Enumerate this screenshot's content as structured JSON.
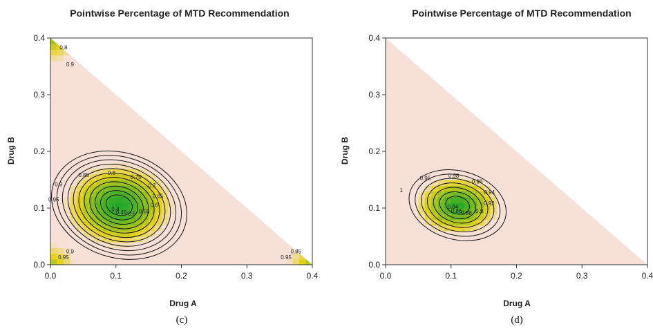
{
  "colors": {
    "low": "#22a82a",
    "mid": "#e6d21a",
    "high": "#f6e0d8",
    "contour": "#111111"
  },
  "chart_data": [
    {
      "type": "heatmap",
      "panel_label": "(c)",
      "title": "Pointwise Percentage of MTD Recommendation",
      "xlabel": "Drug A",
      "ylabel": "Drug B",
      "xlim": [
        0,
        0.4
      ],
      "ylim": [
        0,
        0.4
      ],
      "xticks": [
        "0.0",
        "0.1",
        "0.2",
        "0.3",
        "0.4"
      ],
      "yticks": [
        "0.0",
        "0.1",
        "0.2",
        "0.3",
        "0.4"
      ],
      "valid_region": "A + B <= 0.4",
      "minimum": {
        "x": 0.105,
        "y": 0.105,
        "value": 0.4
      },
      "contour_levels": [
        0.45,
        0.5,
        0.55,
        0.6,
        0.65,
        0.7,
        0.75,
        0.8,
        0.85,
        0.9,
        0.95
      ],
      "contour_labels": [
        "0.4",
        "0.45",
        "0.5",
        "0.55",
        "0.6",
        "0.65",
        "0.7",
        "0.75",
        "0.8",
        "0.85",
        "0.9",
        "0.95"
      ],
      "corner_features": [
        {
          "x": 0.0,
          "y": 0.4,
          "labels": [
            "0.8",
            "0.9"
          ]
        },
        {
          "x": 0.0,
          "y": 0.0,
          "labels": [
            "0.95",
            "0.9"
          ]
        },
        {
          "x": 0.4,
          "y": 0.0,
          "labels": [
            "0.95",
            "0.85"
          ]
        }
      ]
    },
    {
      "type": "heatmap",
      "panel_label": "(d)",
      "title": "Pointwise Percentage of MTD Recommendation",
      "xlabel": "Drug A",
      "ylabel": "Drug B",
      "xlim": [
        0,
        0.4
      ],
      "ylim": [
        0,
        0.4
      ],
      "xticks": [
        "0.0",
        "0.1",
        "0.2",
        "0.3",
        "0.4"
      ],
      "yticks": [
        "0.0",
        "0.1",
        "0.2",
        "0.3",
        "0.4"
      ],
      "valid_region": "A + B <= 0.4",
      "minimum": {
        "x": 0.11,
        "y": 0.105,
        "value": 0.84
      },
      "contour_levels": [
        0.86,
        0.88,
        0.9,
        0.92,
        0.94,
        0.96,
        0.98
      ],
      "contour_labels": [
        "0.84",
        "0.86",
        "0.88",
        "0.9",
        "0.92",
        "0.94",
        "0.96",
        "0.98",
        "0.95",
        "1"
      ],
      "corner_features": []
    }
  ]
}
